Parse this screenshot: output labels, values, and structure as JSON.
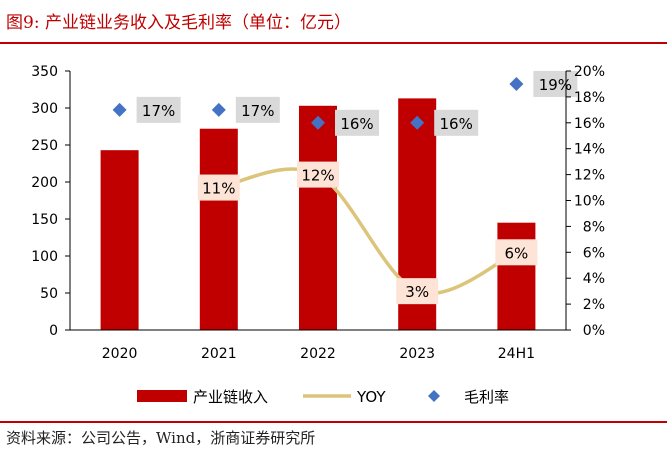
{
  "header": {
    "title": "图9:  产业链业务收入及毛利率（单位：亿元）"
  },
  "footer": {
    "source": "资料来源：公司公告，Wind，浙商证券研究所"
  },
  "colors": {
    "accent": "#c00000",
    "bar": "#c00000",
    "line": "#dcc47a",
    "marker": "#4472c4"
  },
  "chart_data": {
    "type": "bar",
    "title": "产业链业务收入及毛利率（单位：亿元）",
    "categories": [
      "2020",
      "2021",
      "2022",
      "2023",
      "24H1"
    ],
    "series": [
      {
        "name": "产业链收入",
        "type": "bar",
        "axis": "left",
        "values": [
          243,
          272,
          303,
          313,
          145
        ]
      },
      {
        "name": "YOY",
        "type": "line",
        "axis": "right",
        "values": [
          null,
          11,
          12,
          3,
          6
        ],
        "labels": [
          "",
          "11%",
          "12%",
          "3%",
          "6%"
        ]
      },
      {
        "name": "毛利率",
        "type": "scatter",
        "axis": "right",
        "values": [
          17,
          17,
          16,
          16,
          19
        ],
        "labels": [
          "17%",
          "17%",
          "16%",
          "16%",
          "19%"
        ]
      }
    ],
    "y_left": {
      "min": 0,
      "max": 350,
      "ticks": [
        "0",
        "50",
        "100",
        "150",
        "200",
        "250",
        "300",
        "350"
      ]
    },
    "y_right": {
      "min": 0,
      "max": 20,
      "ticks": [
        "0%",
        "2%",
        "4%",
        "6%",
        "8%",
        "10%",
        "12%",
        "14%",
        "16%",
        "18%",
        "20%"
      ]
    },
    "legend": {
      "position": "bottom",
      "items": [
        "产业链收入",
        "YOY",
        "毛利率"
      ]
    },
    "grid": false
  }
}
